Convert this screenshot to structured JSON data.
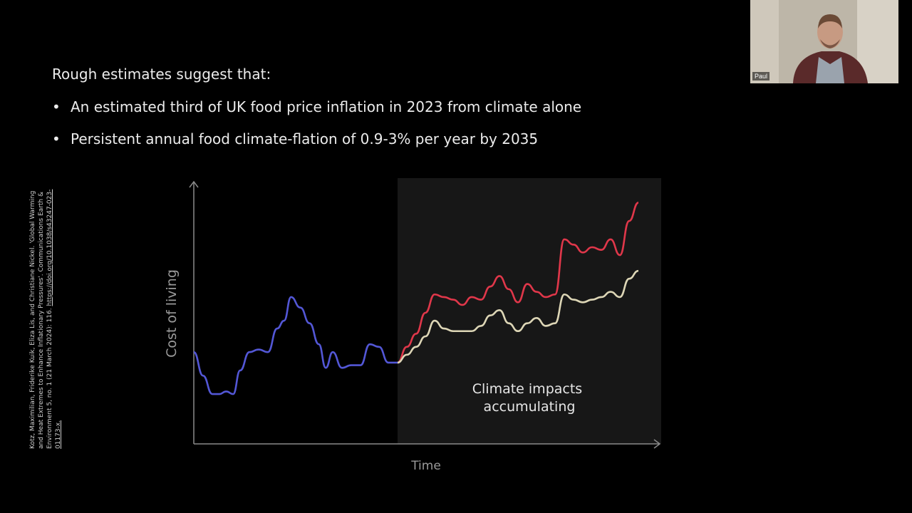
{
  "slide": {
    "intro": "Rough estimates suggest that:",
    "bullets": [
      "An estimated third of UK food price inflation in 2023 from climate alone",
      "Persistent annual food climate-flation of 0.9-3% per year by 2035"
    ],
    "bullet_glyph": "•",
    "citation_text": "Kotz, Maximilian, Friderike Kuik, Eliza Lis, and Christiane Nickel. 'Global Warming and Heat Extremes to Enhance Inflationary Pressures'. Communications Earth & Environment 5, no. 1 (21 March 2024): 116.",
    "citation_url": "https://doi.org/10.1038/s43247-023-01173-x."
  },
  "participant": {
    "name": "Paul"
  },
  "chart_data": {
    "type": "line",
    "xlabel": "Time",
    "ylabel": "Cost of living",
    "shaded_region_label": "Climate impacts accumulating",
    "shaded_region_start_x": 0.44,
    "xlim": [
      0,
      1
    ],
    "ylim": [
      0,
      1
    ],
    "series": [
      {
        "color": "#5357d6",
        "x": [
          0,
          0.02,
          0.04,
          0.055,
          0.07,
          0.085,
          0.1,
          0.12,
          0.14,
          0.16,
          0.18,
          0.195,
          0.21,
          0.23,
          0.25,
          0.27,
          0.285,
          0.3,
          0.32,
          0.34,
          0.36,
          0.38,
          0.4,
          0.42,
          0.44
        ],
        "y": [
          0.35,
          0.26,
          0.19,
          0.19,
          0.2,
          0.19,
          0.28,
          0.35,
          0.36,
          0.35,
          0.44,
          0.47,
          0.56,
          0.52,
          0.46,
          0.38,
          0.29,
          0.35,
          0.29,
          0.3,
          0.3,
          0.38,
          0.37,
          0.31,
          0.31
        ]
      },
      {
        "color": "#e0374a",
        "x": [
          0.44,
          0.46,
          0.48,
          0.5,
          0.52,
          0.54,
          0.56,
          0.58,
          0.6,
          0.62,
          0.64,
          0.66,
          0.68,
          0.7,
          0.72,
          0.74,
          0.76,
          0.78,
          0.8,
          0.82,
          0.84,
          0.86,
          0.88,
          0.9,
          0.92,
          0.94,
          0.96
        ],
        "y": [
          0.31,
          0.37,
          0.42,
          0.5,
          0.57,
          0.56,
          0.55,
          0.53,
          0.56,
          0.55,
          0.6,
          0.64,
          0.59,
          0.54,
          0.61,
          0.58,
          0.56,
          0.57,
          0.78,
          0.76,
          0.73,
          0.75,
          0.74,
          0.78,
          0.72,
          0.85,
          0.92
        ]
      },
      {
        "color": "#ddd6b6",
        "x": [
          0.44,
          0.46,
          0.48,
          0.5,
          0.52,
          0.54,
          0.56,
          0.58,
          0.6,
          0.62,
          0.64,
          0.66,
          0.68,
          0.7,
          0.72,
          0.74,
          0.76,
          0.78,
          0.8,
          0.82,
          0.84,
          0.86,
          0.88,
          0.9,
          0.92,
          0.94,
          0.96
        ],
        "y": [
          0.31,
          0.34,
          0.37,
          0.41,
          0.47,
          0.44,
          0.43,
          0.43,
          0.43,
          0.45,
          0.49,
          0.51,
          0.46,
          0.43,
          0.46,
          0.48,
          0.45,
          0.46,
          0.57,
          0.55,
          0.54,
          0.55,
          0.56,
          0.58,
          0.56,
          0.63,
          0.66
        ]
      }
    ]
  }
}
